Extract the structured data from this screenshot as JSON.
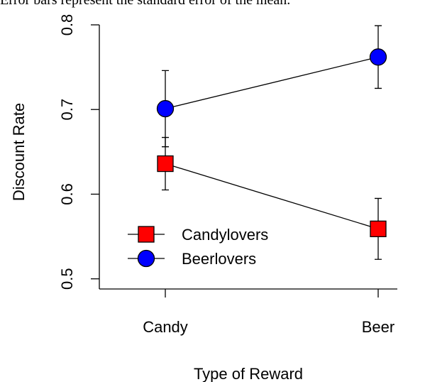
{
  "chart_data": {
    "type": "line",
    "subtitle": "Error bars represent the standard error of the mean.",
    "xlabel": "Type of Reward",
    "ylabel": "Discount Rate",
    "categories": [
      "Candy",
      "Beer"
    ],
    "series": [
      {
        "name": "Candylovers",
        "color": "#ff0000",
        "marker": "square",
        "values": [
          0.636,
          0.559
        ],
        "error": [
          0.031,
          0.036
        ]
      },
      {
        "name": "Beerlovers",
        "color": "#0000ff",
        "marker": "circle",
        "values": [
          0.701,
          0.762
        ],
        "error": [
          0.045,
          0.037
        ]
      }
    ],
    "ylim": [
      0.488,
      0.8
    ],
    "yticks": [
      0.5,
      0.6,
      0.7,
      0.8
    ],
    "legend": "bottom-left",
    "grid": false
  }
}
